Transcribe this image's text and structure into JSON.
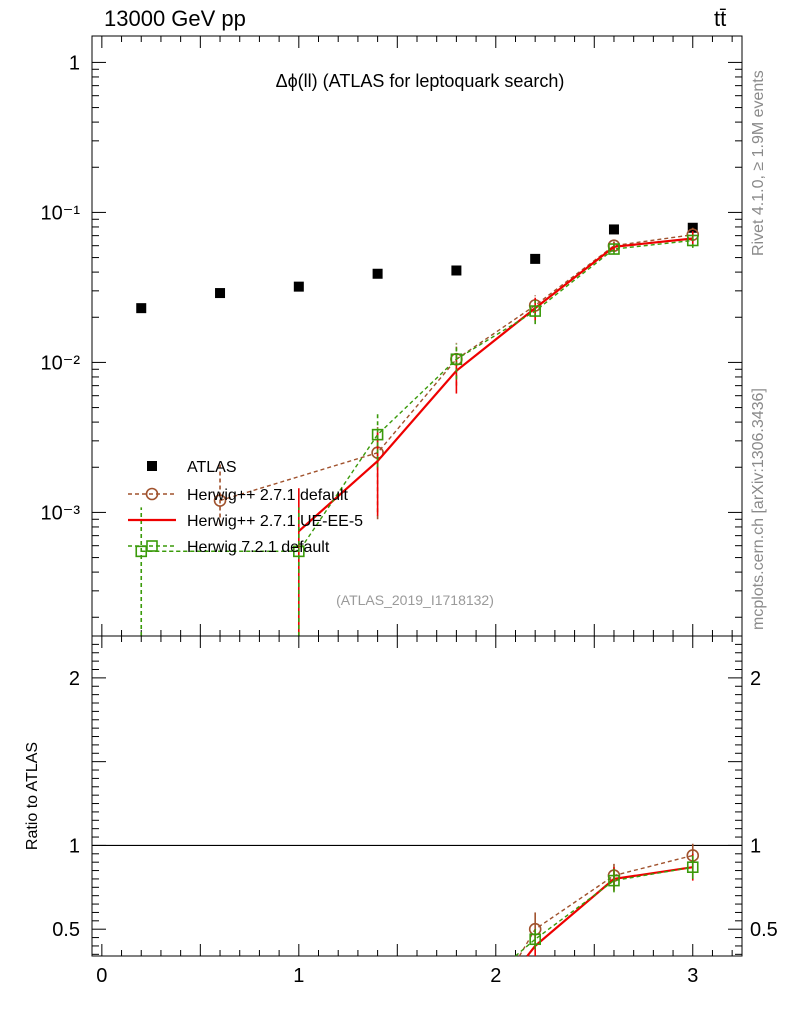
{
  "header": {
    "left_title": "13000 GeV pp",
    "right_title": "tt̄"
  },
  "side_labels": {
    "rivet": "Rivet 4.1.0, ≥ 1.9M events",
    "mcplots": "mcplots.cern.ch [arXiv:1306.3436]"
  },
  "chart_data": [
    {
      "type": "scatter",
      "title": "Δϕ(ll) (ATLAS for leptoquark search)",
      "watermark": "(ATLAS_2019_I1718132)",
      "xlim": [
        -0.05,
        3.25
      ],
      "ylim": [
        0.00015,
        1.5
      ],
      "log_y": true,
      "y_ticks": [
        {
          "v": 1,
          "label": "1"
        },
        {
          "v": 0.1,
          "label": "10⁻¹"
        },
        {
          "v": 0.01,
          "label": "10⁻²"
        },
        {
          "v": 0.001,
          "label": "10⁻³"
        }
      ],
      "legend_placement": "bottom-left",
      "series": [
        {
          "name": "ATLAS",
          "style": "data-square",
          "color": "#000000",
          "x": [
            0.2,
            0.6,
            1.0,
            1.4,
            1.8,
            2.2,
            2.6,
            3.0
          ],
          "y": [
            0.023,
            0.029,
            0.032,
            0.039,
            0.041,
            0.049,
            0.077,
            0.079
          ]
        },
        {
          "name": "Herwig++ 2.7.1 default",
          "style": "dashed-circle",
          "color": "#a0522d",
          "x": [
            0.6,
            1.4,
            1.8,
            2.2,
            2.6,
            3.0
          ],
          "y": [
            0.0012,
            0.0025,
            0.0105,
            0.024,
            0.06,
            0.071
          ],
          "err_lo": [
            0.00083,
            0.0009,
            0.007,
            0.02,
            0.056,
            0.063
          ],
          "err_hi": [
            0.0021,
            0.0037,
            0.0135,
            0.028,
            0.064,
            0.079
          ]
        },
        {
          "name": "Herwig++ 2.7.1 UE-EE-5",
          "style": "solid-line",
          "color": "#ee0000",
          "x": [
            1.0,
            1.4,
            1.8,
            2.2,
            2.6,
            3.0
          ],
          "y": [
            0.00075,
            0.0022,
            0.0088,
            0.023,
            0.059,
            0.067
          ],
          "err_lo": [
            0.00015,
            0.00095,
            0.0062,
            0.019,
            0.055,
            0.059
          ],
          "err_hi": [
            0.00145,
            0.0034,
            0.0114,
            0.027,
            0.063,
            0.075
          ]
        },
        {
          "name": "Herwig 7.2.1 default",
          "style": "dashed-square",
          "color": "#3a9a0a",
          "x": [
            0.2,
            1.0,
            1.4,
            1.8,
            2.2,
            2.6,
            3.0
          ],
          "y": [
            0.00055,
            0.00055,
            0.0033,
            0.0105,
            0.022,
            0.057,
            0.065
          ],
          "err_lo": [
            0.00015,
            0.00015,
            0.002,
            0.0077,
            0.018,
            0.053,
            0.058
          ],
          "err_hi": [
            0.00108,
            0.00108,
            0.0046,
            0.0133,
            0.026,
            0.061,
            0.072
          ]
        }
      ]
    },
    {
      "type": "line",
      "ylabel": "Ratio to ATLAS",
      "xlim": [
        -0.05,
        3.25
      ],
      "ylim": [
        0.34,
        2.25
      ],
      "y_ticks": [
        {
          "v": 0.5,
          "label": "0.5"
        },
        {
          "v": 1,
          "label": "1"
        },
        {
          "v": 2,
          "label": "2"
        }
      ],
      "x_ticks": [
        {
          "v": 0,
          "label": "0"
        },
        {
          "v": 1,
          "label": "1"
        },
        {
          "v": 2,
          "label": "2"
        },
        {
          "v": 3,
          "label": "3"
        }
      ],
      "reference_line": 1,
      "series": [
        {
          "name": "Herwig++ 2.7.1 default",
          "color": "#a0522d",
          "style": "dashed-circle",
          "x": [
            2.2,
            2.6,
            3.0
          ],
          "y": [
            0.5,
            0.82,
            0.94
          ],
          "err": [
            0.1,
            0.07,
            0.07
          ],
          "extend_from": [
            2.12,
            0.34
          ]
        },
        {
          "name": "Herwig++ 2.7.1 UE-EE-5",
          "color": "#ee0000",
          "style": "solid-line",
          "x": [
            2.2,
            2.6,
            3.0
          ],
          "y": [
            0.4,
            0.8,
            0.87
          ],
          "err": [
            0.07,
            0.07,
            0.08
          ],
          "extend_from": [
            2.16,
            0.34
          ]
        },
        {
          "name": "Herwig 7.2.1 default",
          "color": "#3a9a0a",
          "style": "dashed-square",
          "x": [
            2.2,
            2.6,
            3.0
          ],
          "y": [
            0.44,
            0.79,
            0.87
          ],
          "err": [
            0.06,
            0.07,
            0.07
          ],
          "extend_from": [
            2.1,
            0.34
          ]
        }
      ]
    }
  ]
}
